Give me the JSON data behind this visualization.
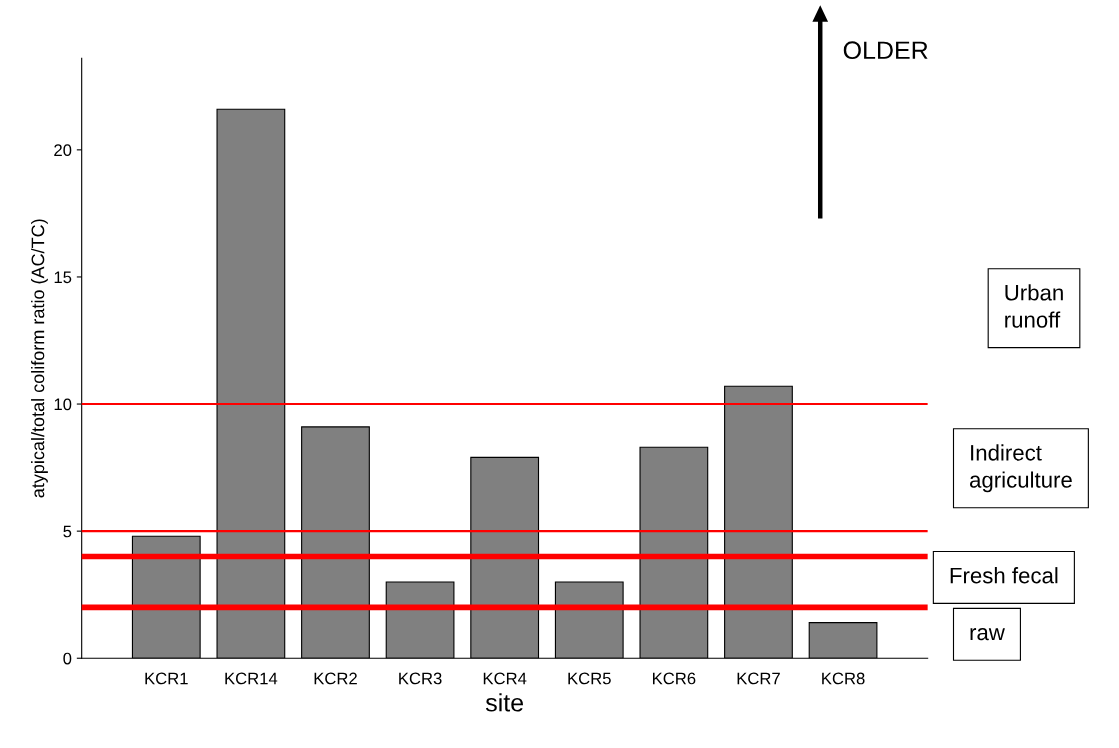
{
  "chart_data": {
    "type": "bar",
    "xlabel": "site",
    "ylabel": "atypical/total coliform ratio (AC/TC)",
    "categories": [
      "KCR1",
      "KCR14",
      "KCR2",
      "KCR3",
      "KCR4",
      "KCR5",
      "KCR6",
      "KCR7",
      "KCR8"
    ],
    "values": [
      4.8,
      21.6,
      9.1,
      3.0,
      7.9,
      3.0,
      8.3,
      10.7,
      1.4
    ],
    "color": "#808080",
    "ylim": [
      0,
      23.6
    ],
    "yticks": [
      0,
      5,
      10,
      15,
      20
    ],
    "grid": false,
    "ref_lines": [
      {
        "axis": "y",
        "value": 10,
        "color": "#ff0000"
      },
      {
        "axis": "y",
        "value": 5,
        "color": "#ff0000"
      },
      {
        "axis": "y",
        "value": 4,
        "color": "#ff0000"
      },
      {
        "axis": "y",
        "value": 2,
        "color": "#ff0000"
      }
    ],
    "annotations": [
      "OLDER",
      "Urban\nrunoff",
      "Indirect\nagriculture",
      "Fresh fecal",
      "raw"
    ]
  }
}
